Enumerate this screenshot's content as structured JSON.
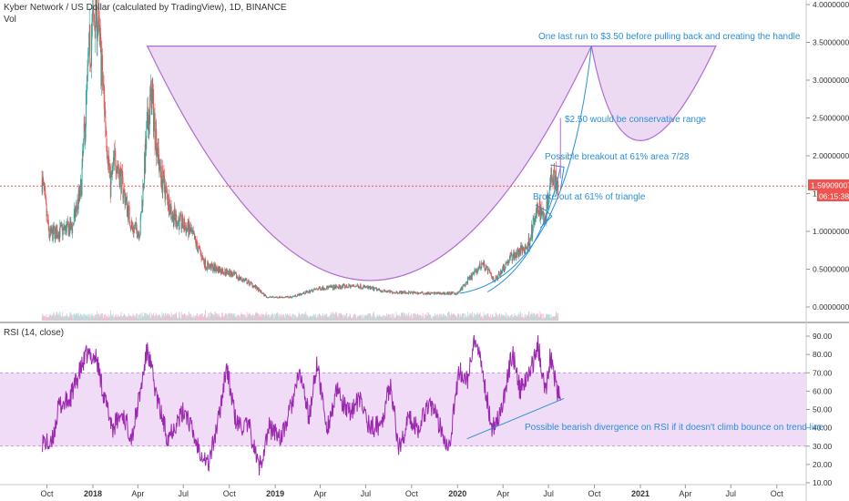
{
  "header": {
    "symbol_title": "Kyber Network / US Dollar (calculated by TradingView), 1D, BINANCE",
    "vol_label": "Vol"
  },
  "rsi_panel": {
    "title": "RSI (14, close)"
  },
  "price_badge": {
    "price": "1.59909007",
    "countdown": "06:15:38",
    "color": "#ef5350"
  },
  "annotations": {
    "handle_note": "One last run to $3.50 before pulling back and creating the handle",
    "conservative_note": "$2.50 would be conservative range",
    "breakout_note": "Possible breakout at 61% area 7/28",
    "triangle_note": "Broke out at 61% of triangle",
    "divergence_note": "Possible bearish divergence on RSI if it doesn't climb bounce on trend line"
  },
  "colors": {
    "annotation_text": "#2a8fd8",
    "cup_fill": "#e9d3f0",
    "cup_stroke": "#b36ad0",
    "rsi_line": "#9c27b0",
    "rsi_band": "#f1dcf8",
    "up_candle": "#26a69a",
    "down_candle": "#ef5350",
    "trendline": "#2a8fd8",
    "price_line": "#ef5350"
  },
  "chart_data": [
    {
      "type": "candlestick",
      "title": "Kyber Network / US Dollar (calculated by TradingView), 1D, BINANCE",
      "y_axis_side": "right",
      "ylim": [
        -0.05,
        4.05
      ],
      "ytick_labels": [
        "0.00000000",
        "0.50000000",
        "1.00000000",
        "1.50000000",
        "2.00000000",
        "2.50000000",
        "3.00000000",
        "3.50000000",
        "4.00000000"
      ],
      "yticks": [
        0,
        0.5,
        1,
        1.5,
        2,
        2.5,
        3,
        3.5,
        4
      ],
      "xtick_labels": [
        "Oct",
        "2018",
        "Apr",
        "Jul",
        "Oct",
        "2019",
        "Apr",
        "Jul",
        "Oct",
        "2020",
        "Apr",
        "Jul",
        "Oct",
        "2021",
        "Apr",
        "Jul",
        "Oct"
      ],
      "xticks": [
        "2017-10-01",
        "2018-01-01",
        "2018-04-01",
        "2018-07-01",
        "2018-10-01",
        "2019-01-01",
        "2019-04-01",
        "2019-07-01",
        "2019-10-01",
        "2020-01-01",
        "2020-04-01",
        "2020-07-01",
        "2020-10-01",
        "2021-01-01",
        "2021-04-01",
        "2021-07-01",
        "2021-10-01"
      ],
      "last_price": 1.59909007,
      "close_path": [
        {
          "x": "2017-09-21",
          "y": 1.7
        },
        {
          "x": "2017-10-05",
          "y": 0.95
        },
        {
          "x": "2017-10-25",
          "y": 1.0
        },
        {
          "x": "2017-11-20",
          "y": 1.05
        },
        {
          "x": "2017-12-08",
          "y": 1.55
        },
        {
          "x": "2017-12-25",
          "y": 3.4
        },
        {
          "x": "2018-01-08",
          "y": 4.0
        },
        {
          "x": "2018-01-20",
          "y": 3.0
        },
        {
          "x": "2018-02-05",
          "y": 1.6
        },
        {
          "x": "2018-02-15",
          "y": 2.0
        },
        {
          "x": "2018-03-01",
          "y": 1.6
        },
        {
          "x": "2018-03-20",
          "y": 1.05
        },
        {
          "x": "2018-04-05",
          "y": 1.0
        },
        {
          "x": "2018-04-20",
          "y": 2.4
        },
        {
          "x": "2018-04-28",
          "y": 2.8
        },
        {
          "x": "2018-05-15",
          "y": 1.8
        },
        {
          "x": "2018-06-10",
          "y": 1.2
        },
        {
          "x": "2018-07-15",
          "y": 1.0
        },
        {
          "x": "2018-08-15",
          "y": 0.55
        },
        {
          "x": "2018-10-01",
          "y": 0.45
        },
        {
          "x": "2018-11-15",
          "y": 0.3
        },
        {
          "x": "2018-12-15",
          "y": 0.13
        },
        {
          "x": "2019-02-01",
          "y": 0.13
        },
        {
          "x": "2019-04-01",
          "y": 0.25
        },
        {
          "x": "2019-06-15",
          "y": 0.28
        },
        {
          "x": "2019-08-15",
          "y": 0.2
        },
        {
          "x": "2019-11-01",
          "y": 0.18
        },
        {
          "x": "2020-01-01",
          "y": 0.18
        },
        {
          "x": "2020-02-20",
          "y": 0.58
        },
        {
          "x": "2020-03-15",
          "y": 0.35
        },
        {
          "x": "2020-04-15",
          "y": 0.65
        },
        {
          "x": "2020-05-20",
          "y": 0.8
        },
        {
          "x": "2020-06-10",
          "y": 1.3
        },
        {
          "x": "2020-06-25",
          "y": 1.2
        },
        {
          "x": "2020-07-08",
          "y": 1.85
        },
        {
          "x": "2020-07-20",
          "y": 1.6
        }
      ],
      "cup_pattern": {
        "left_rim": {
          "x": "2018-04-20",
          "y": 3.45
        },
        "bottom": {
          "x": "2019-07-10",
          "y": 0.35
        },
        "right_rim": {
          "x": "2020-09-25",
          "y": 3.45
        }
      },
      "handle_pattern": {
        "left": {
          "x": "2020-09-25",
          "y": 3.45
        },
        "bottom": {
          "x": "2021-01-01",
          "y": 2.2
        },
        "right": {
          "x": "2021-06-01",
          "y": 3.45
        }
      }
    },
    {
      "type": "line",
      "title": "RSI (14, close)",
      "ylim": [
        8,
        93
      ],
      "ytick_labels": [
        "10.00",
        "20.00",
        "30.00",
        "40.00",
        "50.00",
        "60.00",
        "70.00",
        "80.00",
        "90.00"
      ],
      "yticks": [
        10,
        20,
        30,
        40,
        50,
        60,
        70,
        80,
        90
      ],
      "band": [
        30,
        70
      ],
      "series": [
        {
          "values": [
            {
              "x": "2017-09-21",
              "y": 33
            },
            {
              "x": "2017-10-10",
              "y": 30
            },
            {
              "x": "2017-10-25",
              "y": 52
            },
            {
              "x": "2017-11-15",
              "y": 55
            },
            {
              "x": "2017-12-05",
              "y": 70
            },
            {
              "x": "2017-12-20",
              "y": 80
            },
            {
              "x": "2018-01-08",
              "y": 78
            },
            {
              "x": "2018-01-25",
              "y": 55
            },
            {
              "x": "2018-02-10",
              "y": 40
            },
            {
              "x": "2018-03-01",
              "y": 48
            },
            {
              "x": "2018-03-20",
              "y": 35
            },
            {
              "x": "2018-04-05",
              "y": 58
            },
            {
              "x": "2018-04-20",
              "y": 83
            },
            {
              "x": "2018-05-10",
              "y": 55
            },
            {
              "x": "2018-05-30",
              "y": 35
            },
            {
              "x": "2018-06-15",
              "y": 42
            },
            {
              "x": "2018-07-05",
              "y": 50
            },
            {
              "x": "2018-07-25",
              "y": 33
            },
            {
              "x": "2018-08-20",
              "y": 20
            },
            {
              "x": "2018-09-10",
              "y": 45
            },
            {
              "x": "2018-09-25",
              "y": 74
            },
            {
              "x": "2018-10-15",
              "y": 42
            },
            {
              "x": "2018-11-10",
              "y": 40
            },
            {
              "x": "2018-11-30",
              "y": 18
            },
            {
              "x": "2018-12-20",
              "y": 40
            },
            {
              "x": "2019-01-15",
              "y": 35
            },
            {
              "x": "2019-02-05",
              "y": 55
            },
            {
              "x": "2019-02-20",
              "y": 70
            },
            {
              "x": "2019-03-10",
              "y": 45
            },
            {
              "x": "2019-03-25",
              "y": 75
            },
            {
              "x": "2019-04-15",
              "y": 40
            },
            {
              "x": "2019-05-05",
              "y": 60
            },
            {
              "x": "2019-05-25",
              "y": 48
            },
            {
              "x": "2019-06-20",
              "y": 55
            },
            {
              "x": "2019-07-10",
              "y": 40
            },
            {
              "x": "2019-08-01",
              "y": 42
            },
            {
              "x": "2019-08-20",
              "y": 65
            },
            {
              "x": "2019-09-05",
              "y": 28
            },
            {
              "x": "2019-09-25",
              "y": 45
            },
            {
              "x": "2019-10-15",
              "y": 40
            },
            {
              "x": "2019-11-05",
              "y": 55
            },
            {
              "x": "2019-11-25",
              "y": 42
            },
            {
              "x": "2019-12-15",
              "y": 30
            },
            {
              "x": "2020-01-05",
              "y": 72
            },
            {
              "x": "2020-01-20",
              "y": 65
            },
            {
              "x": "2020-02-05",
              "y": 88
            },
            {
              "x": "2020-02-20",
              "y": 70
            },
            {
              "x": "2020-03-10",
              "y": 40
            },
            {
              "x": "2020-03-30",
              "y": 50
            },
            {
              "x": "2020-04-20",
              "y": 82
            },
            {
              "x": "2020-05-05",
              "y": 60
            },
            {
              "x": "2020-05-25",
              "y": 70
            },
            {
              "x": "2020-06-10",
              "y": 85
            },
            {
              "x": "2020-06-25",
              "y": 60
            },
            {
              "x": "2020-07-05",
              "y": 80
            },
            {
              "x": "2020-07-18",
              "y": 60
            },
            {
              "x": "2020-07-25",
              "y": 58
            }
          ]
        }
      ],
      "trendlines": [
        {
          "from": {
            "x": "2020-01-20",
            "y": 34
          },
          "to": {
            "x": "2020-08-01",
            "y": 56
          }
        }
      ]
    }
  ]
}
